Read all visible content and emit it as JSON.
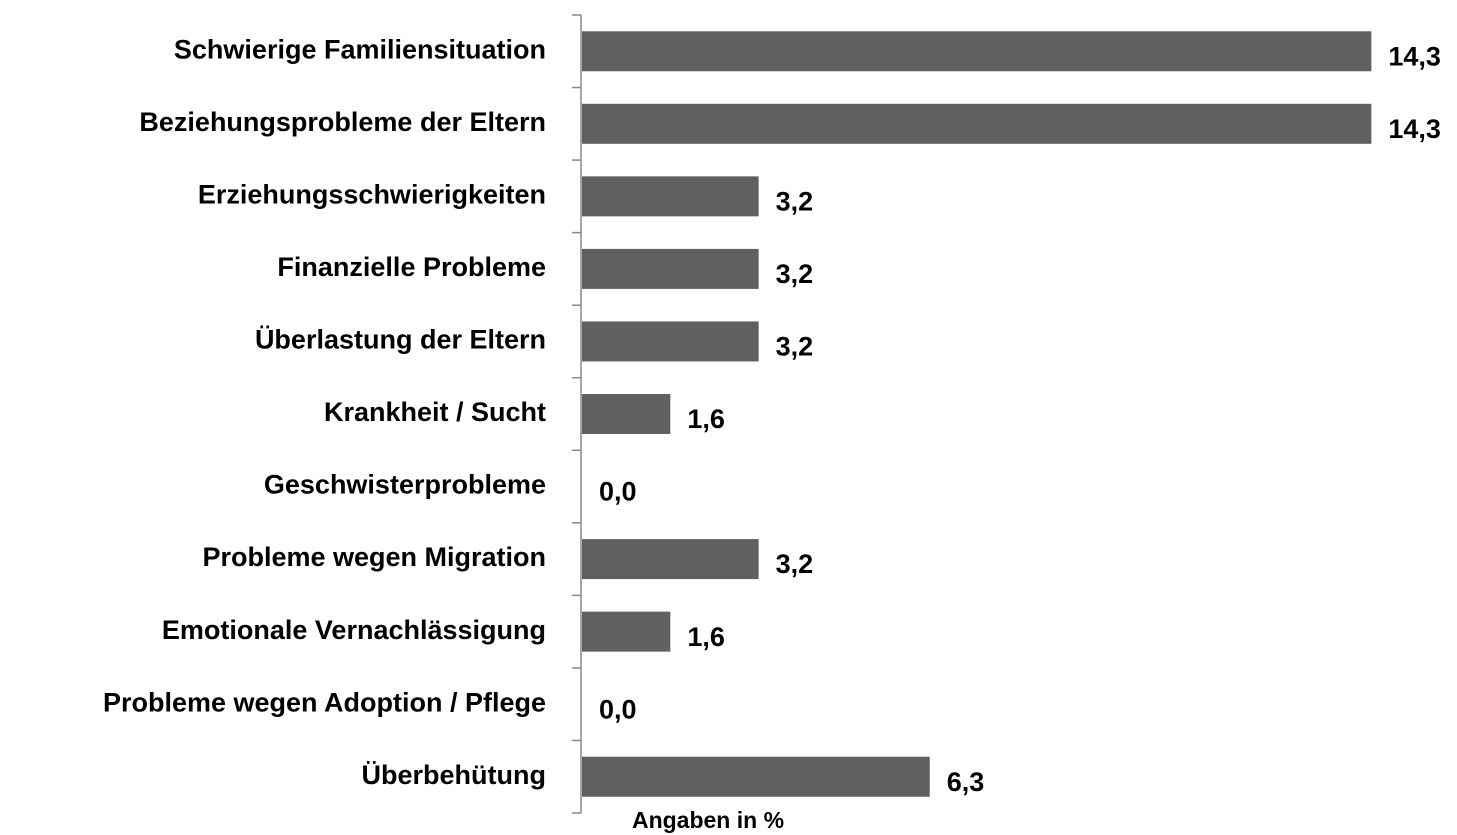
{
  "chart_data": {
    "type": "bar",
    "orientation": "horizontal",
    "x_label": "Angaben in %",
    "categories": [
      "Schwierige Familiensituation",
      "Beziehungsprobleme der Eltern",
      "Erziehungsschwierigkeiten",
      "Finanzielle Probleme",
      "Überlastung der Eltern",
      "Krankheit / Sucht",
      "Geschwisterprobleme",
      "Probleme wegen Migration",
      "Emotionale Vernachlässigung",
      "Probleme wegen Adoption / Pflege",
      "Überbehütung"
    ],
    "values": [
      14.3,
      14.3,
      3.2,
      3.2,
      3.2,
      1.6,
      0.0,
      3.2,
      1.6,
      0.0,
      6.3
    ],
    "value_labels": [
      "14,3",
      "14,3",
      "3,2",
      "3,2",
      "3,2",
      "1,6",
      "0,0",
      "3,2",
      "1,6",
      "0,0",
      "6,3"
    ],
    "color": "#606060"
  }
}
